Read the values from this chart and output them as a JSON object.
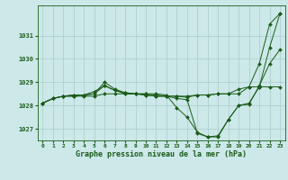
{
  "xlabel": "Graphe pression niveau de la mer (hPa)",
  "x_ticks": [
    0,
    1,
    2,
    3,
    4,
    5,
    6,
    7,
    8,
    9,
    10,
    11,
    12,
    13,
    14,
    15,
    16,
    17,
    18,
    19,
    20,
    21,
    22,
    23
  ],
  "ylim": [
    1026.5,
    1032.3
  ],
  "yticks": [
    1027,
    1028,
    1029,
    1030,
    1031
  ],
  "background_color": "#cce8e8",
  "grid_color": "#aacccc",
  "line_color": "#1a5c1a",
  "line1": [
    1028.1,
    1028.3,
    1028.4,
    1028.4,
    1028.4,
    1028.4,
    1028.5,
    1028.5,
    1028.5,
    1028.5,
    1028.5,
    1028.45,
    1028.4,
    1028.4,
    1028.4,
    1028.45,
    1028.45,
    1028.5,
    1028.5,
    1028.5,
    1028.8,
    1028.8,
    1028.8,
    1028.8
  ],
  "line2": [
    1028.1,
    1028.3,
    1028.4,
    1028.4,
    1028.45,
    1028.5,
    1028.85,
    1028.65,
    1028.5,
    1028.5,
    1028.45,
    1028.4,
    1028.4,
    1028.4,
    1028.35,
    1028.45,
    1028.45,
    1028.5,
    1028.5,
    1028.7,
    1028.8,
    1029.8,
    1031.5,
    1031.95
  ],
  "line3": [
    1028.1,
    1028.3,
    1028.4,
    1028.45,
    1028.45,
    1028.5,
    1029.0,
    1028.7,
    1028.55,
    1028.5,
    1028.5,
    1028.5,
    1028.45,
    1027.9,
    1027.5,
    1026.85,
    1026.65,
    1026.7,
    1027.4,
    1028.0,
    1028.05,
    1028.85,
    1029.8,
    1030.4
  ],
  "line4": [
    1028.1,
    1028.3,
    1028.4,
    1028.45,
    1028.45,
    1028.6,
    1028.85,
    1028.65,
    1028.55,
    1028.5,
    1028.45,
    1028.4,
    1028.4,
    1028.3,
    1028.25,
    1026.8,
    1026.65,
    1026.65,
    1027.4,
    1028.0,
    1028.1,
    1028.8,
    1030.5,
    1031.95
  ],
  "markersize": 2.0,
  "linewidth": 0.7
}
